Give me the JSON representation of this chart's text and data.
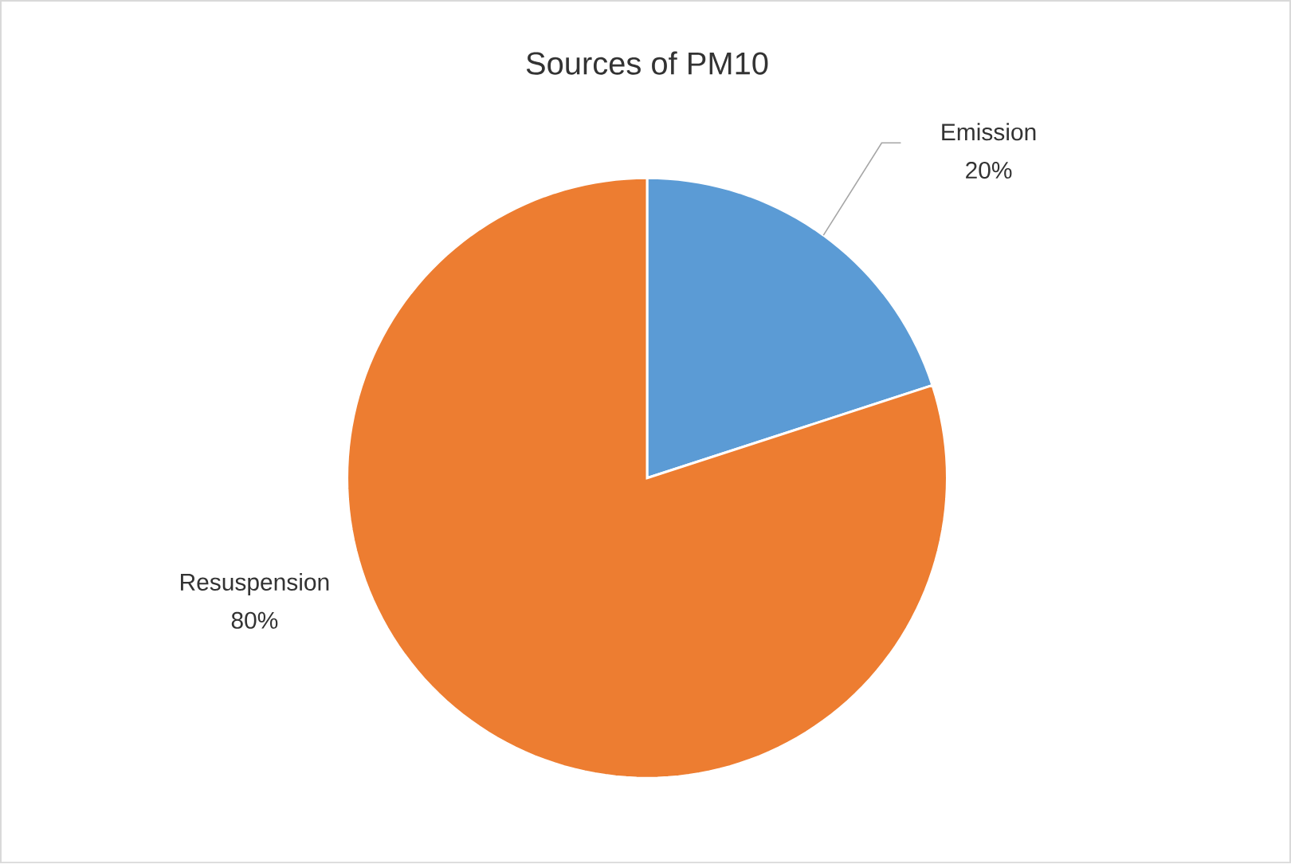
{
  "chart_data": {
    "type": "pie",
    "title": "Sources of PM10",
    "categories": [
      "Emission",
      "Resuspension"
    ],
    "values": [
      20,
      80
    ],
    "value_labels": [
      "20%",
      "80%"
    ],
    "colors": [
      "#5b9bd5",
      "#ed7d31"
    ]
  }
}
